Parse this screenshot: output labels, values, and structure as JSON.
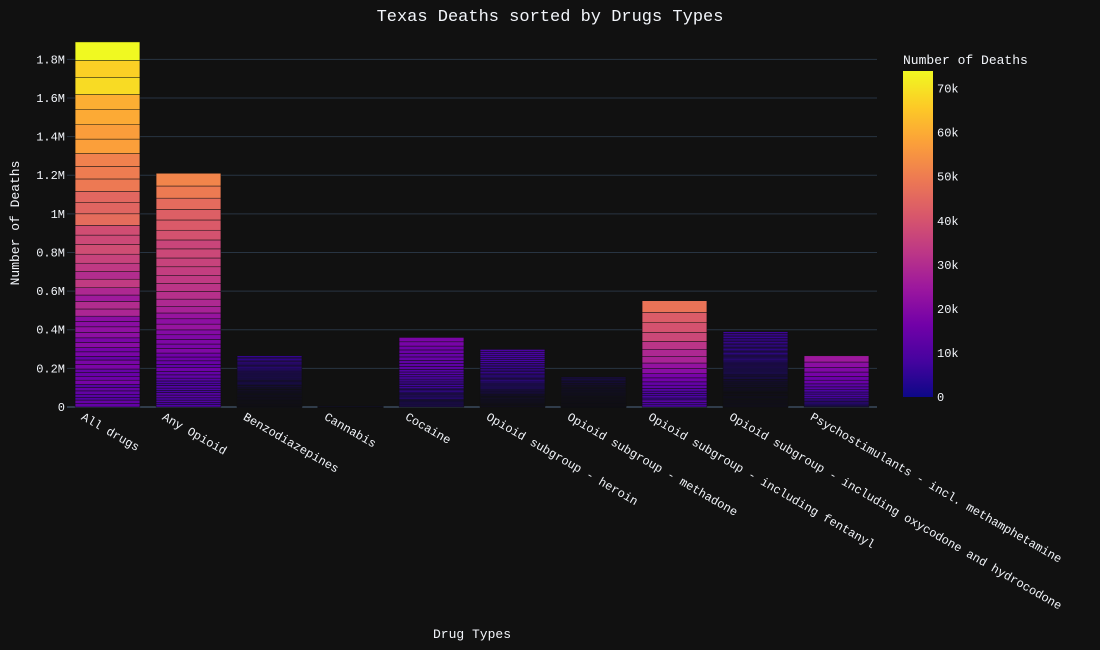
{
  "chart_data": {
    "type": "bar",
    "title": "Texas Deaths sorted by Drugs Types",
    "xlabel": "Drug Types",
    "ylabel": "Number of Deaths",
    "ylim": [
      0,
      1900000
    ],
    "yticks": [
      0,
      200000,
      400000,
      600000,
      800000,
      1000000,
      1200000,
      1400000,
      1600000,
      1800000
    ],
    "ytick_labels": [
      "0",
      "0.2M",
      "0.4M",
      "0.6M",
      "0.8M",
      "1M",
      "1.2M",
      "1.4M",
      "1.6M",
      "1.8M"
    ],
    "categories": [
      "All drugs",
      "Any Opioid",
      "Benzodiazepines",
      "Cannabis",
      "Cocaine",
      "Opioid subgroup - heroin",
      "Opioid subgroup - methadone",
      "Opioid subgroup - including fentanyl",
      "Opioid subgroup - including oxycodone and hydrocodone",
      "Psychostimulants - incl. methamphetamine"
    ],
    "values": [
      1890000,
      1210000,
      265000,
      5000,
      360000,
      298000,
      155000,
      550000,
      390000,
      265000
    ],
    "max_segment": [
      74000,
      52000,
      6000,
      500,
      18000,
      9000,
      3500,
      48000,
      7000,
      25000
    ],
    "grid": true,
    "legend": "none",
    "colorbar": {
      "title": "Number of Deaths",
      "range": [
        0,
        74000
      ],
      "ticks": [
        0,
        10000,
        20000,
        30000,
        40000,
        50000,
        60000,
        70000
      ],
      "tick_labels": [
        "0",
        "10k",
        "20k",
        "30k",
        "40k",
        "50k",
        "60k",
        "70k"
      ],
      "colorscale": [
        "#0d0887",
        "#46039f",
        "#7201a8",
        "#9c179e",
        "#bd3786",
        "#d8576b",
        "#ed7953",
        "#fb9f3a",
        "#fdca26",
        "#f0f921"
      ],
      "placement": "right"
    },
    "colors": {
      "background": "#111111",
      "grid": "#283442",
      "text": "#f2f5fa"
    }
  }
}
